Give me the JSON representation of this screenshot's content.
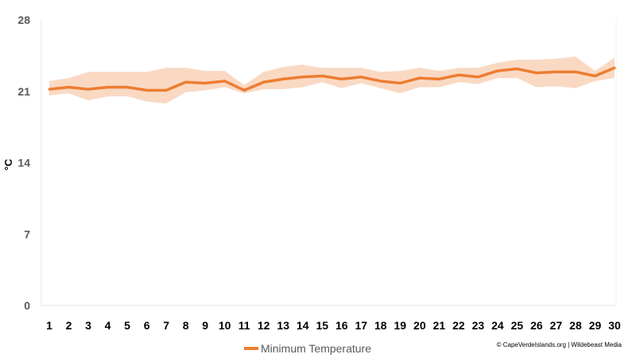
{
  "chart_data": {
    "type": "line",
    "title": "",
    "xlabel": "",
    "ylabel": "°C",
    "ylim": [
      0,
      28
    ],
    "yticks": [
      "0",
      "7",
      "14",
      "21",
      "28"
    ],
    "x": [
      "1",
      "2",
      "3",
      "4",
      "5",
      "6",
      "7",
      "8",
      "9",
      "10",
      "11",
      "12",
      "13",
      "14",
      "15",
      "16",
      "17",
      "18",
      "19",
      "20",
      "21",
      "22",
      "23",
      "24",
      "25",
      "26",
      "27",
      "28",
      "29",
      "30"
    ],
    "series": [
      {
        "name": "Minimum Temperature",
        "color": "#ED7D31",
        "values": [
          21.2,
          21.4,
          21.2,
          21.4,
          21.4,
          21.1,
          21.1,
          21.9,
          21.8,
          22.0,
          21.1,
          21.9,
          22.2,
          22.4,
          22.5,
          22.2,
          22.4,
          22.0,
          21.8,
          22.3,
          22.2,
          22.6,
          22.4,
          23.0,
          23.2,
          22.8,
          22.9,
          22.9,
          22.5,
          23.3
        ],
        "band_upper": [
          22.0,
          22.3,
          22.9,
          22.9,
          22.9,
          22.9,
          23.3,
          23.3,
          23.0,
          23.0,
          21.6,
          22.9,
          23.4,
          23.6,
          23.3,
          23.3,
          23.3,
          22.9,
          23.0,
          23.3,
          23.0,
          23.3,
          23.3,
          23.8,
          24.1,
          24.1,
          24.2,
          24.4,
          23.0,
          24.3
        ],
        "band_lower": [
          20.6,
          20.8,
          20.1,
          20.5,
          20.5,
          20.0,
          19.8,
          20.9,
          21.1,
          21.4,
          20.8,
          21.2,
          21.2,
          21.4,
          21.9,
          21.3,
          21.8,
          21.3,
          20.8,
          21.4,
          21.4,
          21.9,
          21.7,
          22.3,
          22.3,
          21.4,
          21.5,
          21.3,
          22.0,
          22.3
        ],
        "band_color": "#FAD9C3"
      }
    ],
    "grid": false,
    "legend": "bottom-center"
  },
  "credit": "© CapeVerdeIslands.org | Wildebeast Media"
}
